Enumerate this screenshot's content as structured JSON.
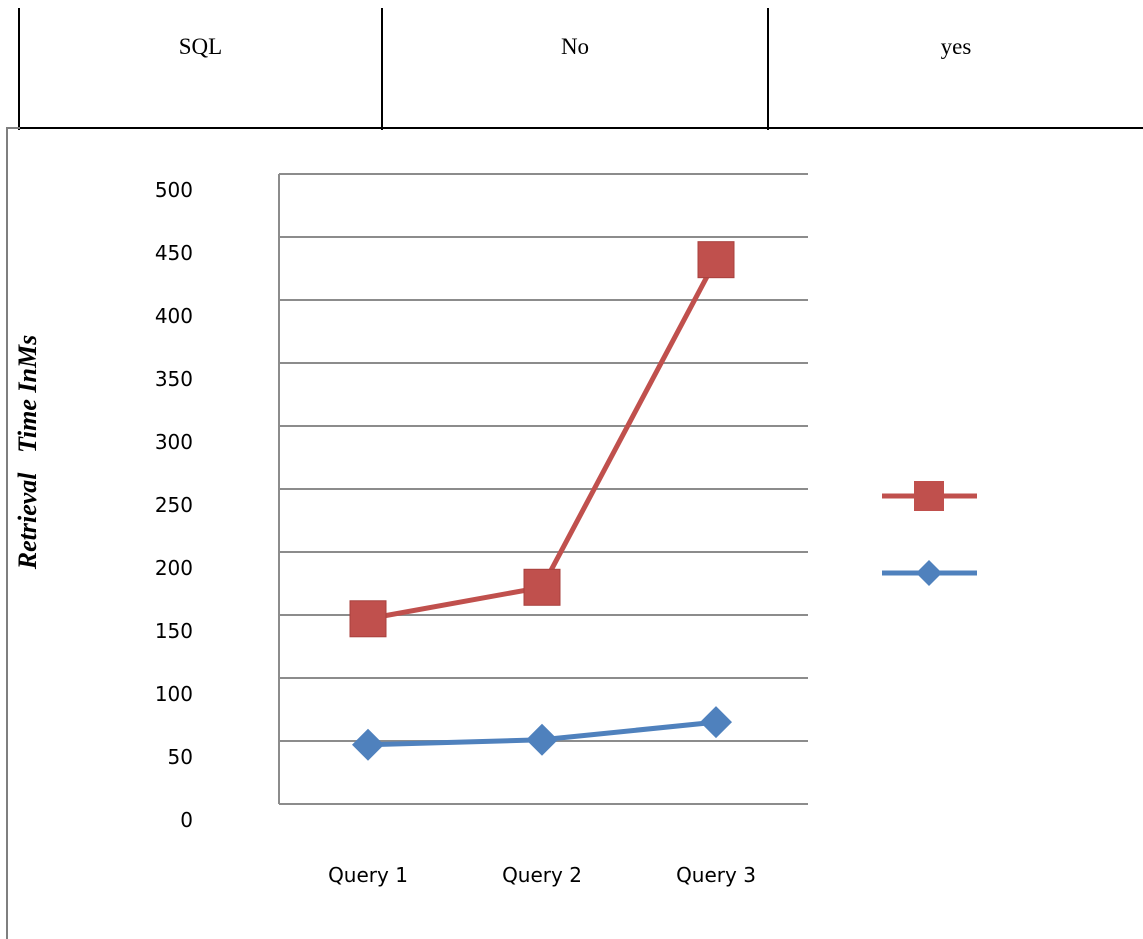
{
  "table": {
    "cells": [
      "SQL",
      "No",
      "yes"
    ]
  },
  "chart_data": {
    "type": "line",
    "title": "",
    "xlabel": "",
    "ylabel": "Retrieval   Time InMs",
    "categories": [
      "Query 1",
      "Query 2",
      "Query 3"
    ],
    "y_tick_labels": [
      "0",
      "50",
      "100",
      "150",
      "200",
      "250",
      "300",
      "350",
      "400",
      "450",
      "500"
    ],
    "ylim": [
      0,
      500
    ],
    "grid": true,
    "legend": "right",
    "series": [
      {
        "marker": "square",
        "color": "#c0504d",
        "values": [
          147,
          172,
          432
        ]
      },
      {
        "marker": "diamond",
        "color": "#4f81bd",
        "values": [
          47,
          51,
          65
        ]
      }
    ]
  }
}
